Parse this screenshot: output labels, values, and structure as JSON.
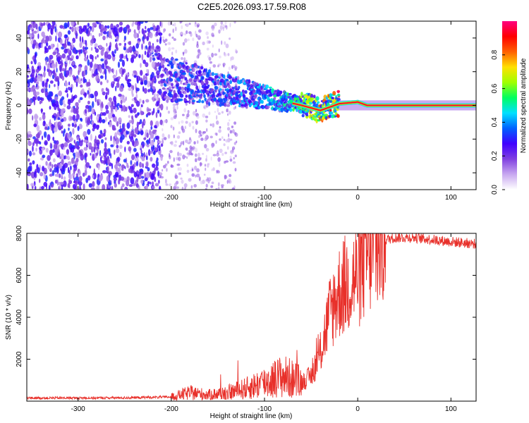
{
  "page_title": "C2E5.2026.093.17.59.R08",
  "chart_data": [
    {
      "type": "heatmap",
      "name": "spectrogram",
      "title": "C2E5.2026.093.17.59.R08",
      "xlabel": "Height of straight line (km)",
      "ylabel": "Frequency (Hz)",
      "xlim": [
        -355,
        127
      ],
      "ylim": [
        -50,
        50
      ],
      "xticks": [
        -300,
        -200,
        -100,
        0,
        100
      ],
      "yticks": [
        -40,
        -20,
        0,
        20,
        40
      ],
      "colorbar": {
        "label": "Normalized spectral amplitude",
        "range": [
          0,
          1
        ],
        "ticks": [
          "0.0",
          "0.2",
          "0.4",
          "0.6",
          "0.8"
        ],
        "colors": [
          "#ffffff",
          "#c8a8f0",
          "#8040e0",
          "#4000ff",
          "#0060ff",
          "#00e0ff",
          "#00ff60",
          "#a0ff00",
          "#ffe000",
          "#ff6000",
          "#ff0000",
          "#ff0080"
        ]
      },
      "features": [
        {
          "region": "noise",
          "x_range": [
            -355,
            -210
          ],
          "freq_range": [
            -50,
            50
          ],
          "amplitude": 0.25
        },
        {
          "region": "sparse noise",
          "x_range": [
            -210,
            -130
          ],
          "freq_range": [
            -50,
            50
          ],
          "amplitude": 0.12
        },
        {
          "region": "signal trace",
          "x": [
            -210,
            -150,
            -100,
            -60,
            -40,
            -20,
            0,
            10,
            127
          ],
          "freq": [
            17,
            10,
            5,
            0,
            -3,
            1,
            2,
            0,
            0
          ],
          "amplitude": [
            0.3,
            0.35,
            0.4,
            0.55,
            0.7,
            0.85,
            0.9,
            0.95,
            0.95
          ]
        }
      ]
    },
    {
      "type": "line",
      "name": "snr",
      "xlabel": "Height of straight line (km)",
      "ylabel": "SNR (10 * v/v)",
      "xlim": [
        -355,
        127
      ],
      "ylim": [
        0,
        8000
      ],
      "xticks": [
        -300,
        -200,
        -100,
        0,
        100
      ],
      "yticks": [
        2000,
        4000,
        6000,
        8000
      ],
      "color": "#e8302a",
      "series": [
        {
          "name": "SNR",
          "x": [
            -355,
            -300,
            -250,
            -200,
            -180,
            -160,
            -140,
            -120,
            -100,
            -80,
            -60,
            -50,
            -40,
            -30,
            -20,
            -10,
            0,
            10,
            20,
            30,
            40,
            60,
            80,
            100,
            127
          ],
          "y": [
            150,
            150,
            160,
            200,
            400,
            300,
            400,
            600,
            900,
            1200,
            900,
            1200,
            2300,
            4200,
            5200,
            5700,
            6000,
            7000,
            7400,
            7700,
            7800,
            7800,
            7700,
            7600,
            7500
          ]
        }
      ]
    }
  ]
}
